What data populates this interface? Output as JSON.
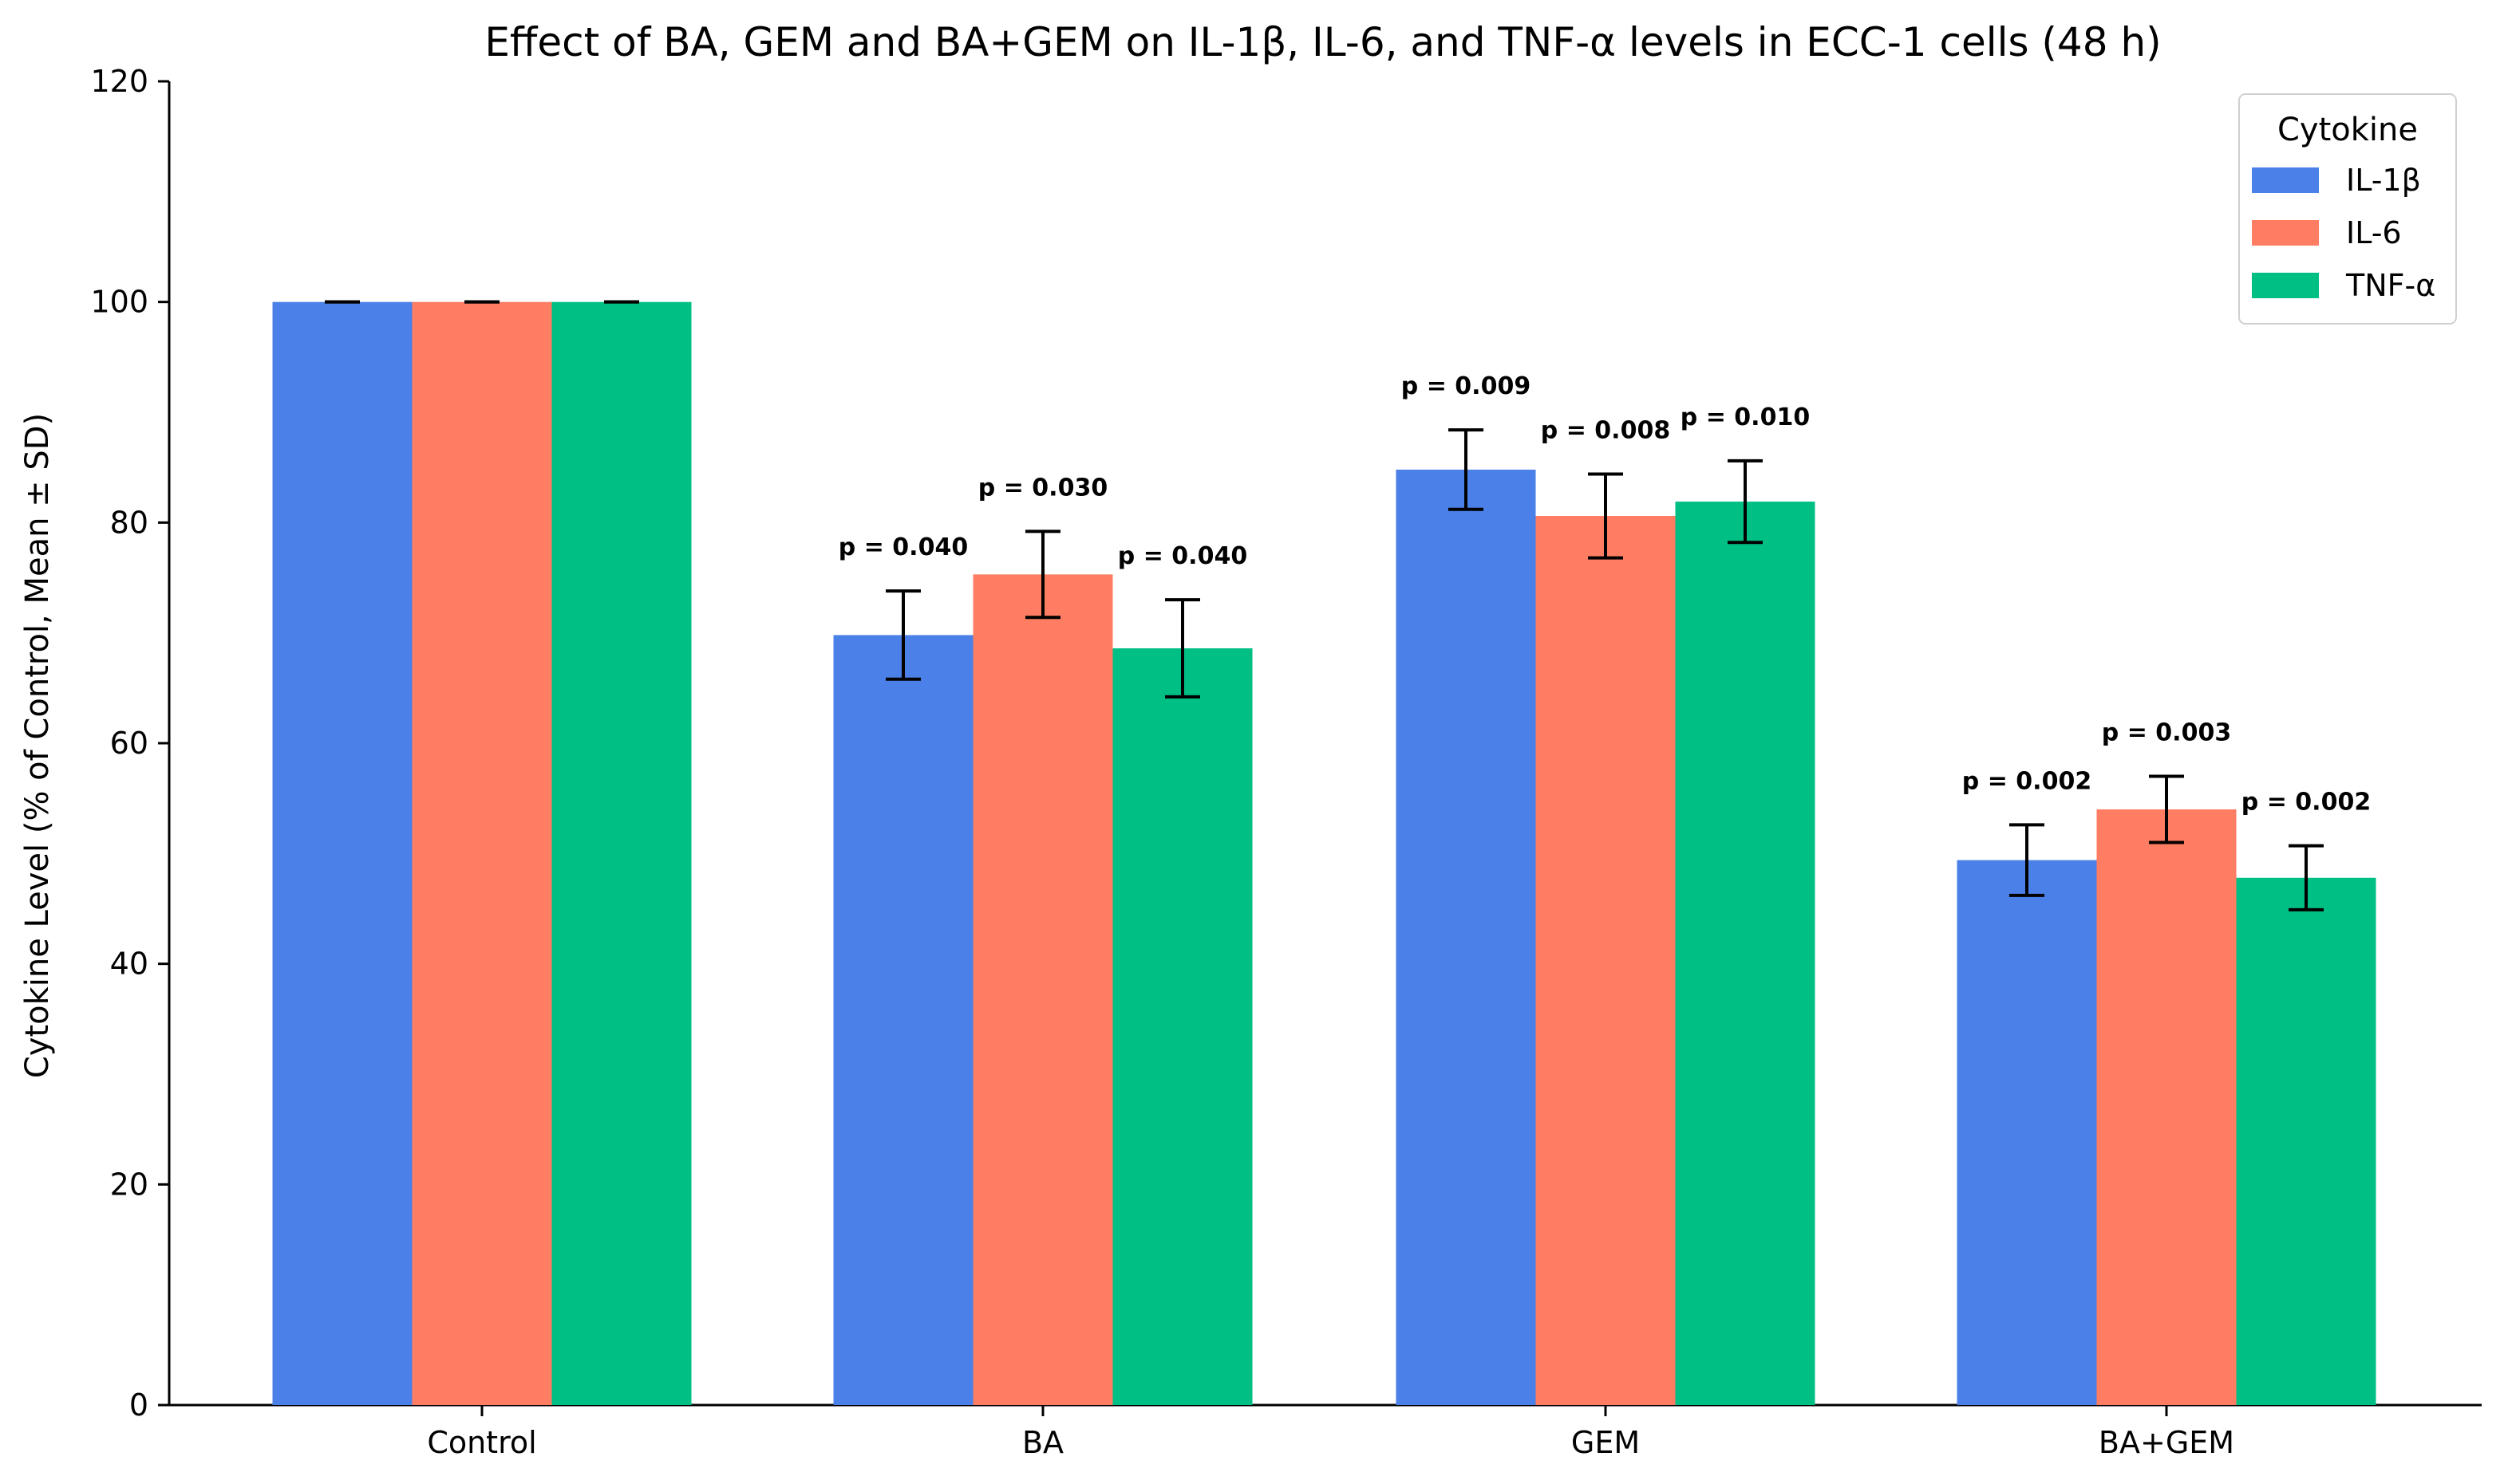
{
  "chart_data": {
    "type": "bar",
    "title": "Effect of BA, GEM and BA+GEM on IL-1β, IL-6, and TNF-α levels in ECC-1 cells (48 h)",
    "xlabel": "",
    "ylabel": "Cytokine Level (% of Control, Mean ± SD)",
    "ylim": [
      0,
      120
    ],
    "yticks": [
      0,
      20,
      40,
      60,
      80,
      100,
      120
    ],
    "grid": false,
    "categories": [
      "Control",
      "BA",
      "GEM",
      "BA+GEM"
    ],
    "legend": {
      "title": "Cytokine",
      "placement": "top-right"
    },
    "series": [
      {
        "name": "IL-1β",
        "color": "#4a80e8",
        "values": [
          100,
          69.8,
          84.8,
          49.4
        ],
        "errors": [
          0,
          4.0,
          3.6,
          3.2
        ],
        "p_labels": [
          "",
          "p = 0.040",
          "p = 0.009",
          "p = 0.002"
        ]
      },
      {
        "name": "IL-6",
        "color": "#ff7d63",
        "values": [
          100,
          75.3,
          80.6,
          54.0
        ],
        "errors": [
          0,
          3.9,
          3.8,
          3.0
        ],
        "p_labels": [
          "",
          "p = 0.030",
          "p = 0.008",
          "p = 0.003"
        ]
      },
      {
        "name": "TNF-α",
        "color": "#00bf84",
        "values": [
          100,
          68.6,
          81.9,
          47.8
        ],
        "errors": [
          0,
          4.4,
          3.7,
          2.9
        ],
        "p_labels": [
          "",
          "p = 0.040",
          "p = 0.010",
          "p = 0.002"
        ]
      }
    ]
  }
}
